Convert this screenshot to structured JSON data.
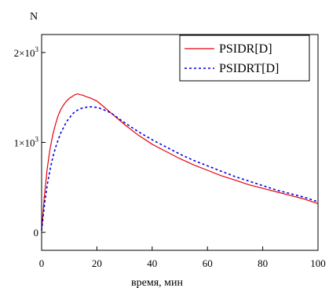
{
  "chart_data": {
    "type": "line",
    "title": "",
    "ylabel": "N",
    "xlabel": "время, мин",
    "xlim": [
      0,
      100
    ],
    "ylim": [
      -200,
      2200
    ],
    "x_ticks": [
      0,
      20,
      40,
      60,
      80,
      100
    ],
    "x_tick_labels": [
      "0",
      "20",
      "40",
      "60",
      "80",
      "100"
    ],
    "y_ticks": [
      0,
      1000,
      2000
    ],
    "y_tick_labels": [
      {
        "base": "0",
        "exp": ""
      },
      {
        "base": "1×10",
        "exp": "3"
      },
      {
        "base": "2×10",
        "exp": "3"
      }
    ],
    "grid": false,
    "legend_position": "top-right",
    "series": [
      {
        "name": "PSIDR[D]",
        "color": "#e8000b",
        "style": "solid",
        "x": [
          0,
          1,
          2,
          3,
          4,
          5,
          6,
          7,
          8,
          9,
          10,
          11,
          12,
          13,
          14,
          15,
          16,
          17,
          18,
          20,
          22,
          25,
          30,
          35,
          40,
          45,
          50,
          55,
          60,
          65,
          70,
          75,
          80,
          85,
          90,
          95,
          100
        ],
        "y": [
          20,
          400,
          700,
          920,
          1080,
          1200,
          1300,
          1370,
          1420,
          1460,
          1490,
          1510,
          1530,
          1540,
          1530,
          1525,
          1510,
          1500,
          1490,
          1460,
          1410,
          1330,
          1200,
          1080,
          980,
          900,
          820,
          750,
          690,
          630,
          580,
          530,
          490,
          450,
          410,
          370,
          320
        ]
      },
      {
        "name": "PSIDRT[D]",
        "color": "#0000e0",
        "style": "dotted",
        "x": [
          0,
          1,
          2,
          3,
          4,
          5,
          6,
          7,
          8,
          9,
          10,
          11,
          12,
          13,
          14,
          15,
          16,
          17,
          18,
          20,
          22,
          25,
          30,
          35,
          40,
          45,
          50,
          55,
          60,
          65,
          70,
          75,
          80,
          85,
          90,
          95,
          100
        ],
        "y": [
          20,
          300,
          520,
          690,
          830,
          940,
          1030,
          1110,
          1170,
          1230,
          1270,
          1310,
          1340,
          1360,
          1375,
          1385,
          1390,
          1395,
          1395,
          1390,
          1370,
          1330,
          1220,
          1120,
          1030,
          950,
          870,
          800,
          740,
          680,
          620,
          570,
          520,
          470,
          430,
          390,
          340
        ]
      }
    ]
  }
}
